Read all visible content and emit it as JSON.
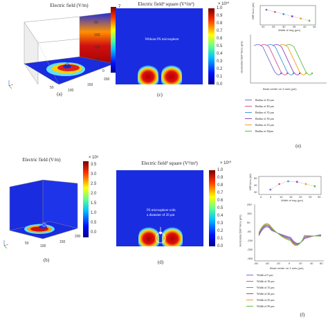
{
  "panels": {
    "a": {
      "title": "Electric field (V/m)",
      "caption": "(a)",
      "colorbar_ticks": [
        "7",
        "6",
        "5",
        "4",
        "3",
        "2",
        "1",
        "0"
      ],
      "axis_ticks": [
        "50",
        "100",
        "150",
        "200",
        "0",
        "50",
        "100",
        "150",
        "200",
        "100",
        "50",
        "0",
        "200"
      ]
    },
    "b": {
      "title": "Electric field (V/m)",
      "caption": "(b)",
      "multiplier": "× 10⁵",
      "colorbar_ticks": [
        "3.5",
        "3.0",
        "2.5",
        "2.0",
        "1.5",
        "1.0",
        "0.5",
        "0.0"
      ],
      "axis_ticks": [
        "50",
        "100",
        "150",
        "200",
        "0",
        "50",
        "100",
        "150",
        "200",
        "100",
        "50",
        "0",
        "200"
      ]
    },
    "c": {
      "title": "Electric field² square (V²/m²)",
      "caption": "(c)",
      "multiplier": "× 10¹⁰",
      "annotation": "Without PS microsphere",
      "colorbar_ticks": [
        "1.0",
        "0.9",
        "0.8",
        "0.7",
        "0.6",
        "0.5",
        "0.4",
        "0.3",
        "0.2",
        "0.1",
        "0.0"
      ]
    },
    "d": {
      "title": "Electric field² square (V²/m²)",
      "caption": "(d)",
      "multiplier": "× 10¹⁰",
      "annotation_line1": "PS microsphere with",
      "annotation_line2": "a diameter of 20 μm",
      "colorbar_ticks": [
        "1.0",
        "0.9",
        "0.8",
        "0.7",
        "0.6",
        "0.5",
        "0.4",
        "0.3",
        "0.2",
        "0.1",
        "0.0"
      ]
    },
    "e": {
      "caption": "(e)",
      "ylabel": "Horizontal DEP force (pN)",
      "xlabel": "Bead center on X axis (μm)",
      "inset_ylabel": "DEP force (pN)",
      "inset_xlabel": "Width of ring (μm)",
      "inset_xticks": [
        "20",
        "25",
        "30",
        "35",
        "40",
        "45"
      ],
      "legend": [
        {
          "label": "Radius of 45 μm",
          "color": "#7b68d8"
        },
        {
          "label": "Radius of 40 μm",
          "color": "#e0508a"
        },
        {
          "label": "Radius of 35 μm",
          "color": "#3aa0d8"
        },
        {
          "label": "Radius of 30 μm",
          "color": "#9a40c0"
        },
        {
          "label": "Radius of 25 μm",
          "color": "#f0a020"
        },
        {
          "label": "Radius of 20μm",
          "color": "#60c040"
        }
      ]
    },
    "f": {
      "caption": "(f)",
      "ylabel": "Horizontal DEP force (pN)",
      "xlabel": "Bead center on X axis (μm)",
      "inset_ylabel": "DEP force (pN)",
      "inset_xlabel": "Width of ring (μm)",
      "inset_xticks": [
        "0",
        "5",
        "10",
        "15",
        "20",
        "25",
        "30"
      ],
      "inset_yticks": [
        "50",
        "40",
        "30"
      ],
      "yticks": [
        "250",
        "200",
        "150",
        "100",
        "50",
        "0",
        "-50",
        "-100",
        "-150",
        "-200",
        "-250",
        "-300",
        "-350"
      ],
      "xticks": [
        "-60",
        "-40",
        "-20",
        "0",
        "20",
        "40",
        "60"
      ],
      "legend": [
        {
          "label": "Width of 5 μm",
          "color": "#7b68d8"
        },
        {
          "label": "Width of 10 μm",
          "color": "#e0508a"
        },
        {
          "label": "Width of 15 μm",
          "color": "#3aa0d8"
        },
        {
          "label": "Width of 20 μm",
          "color": "#9a40c0"
        },
        {
          "label": "Width of 25 μm",
          "color": "#f0a020"
        },
        {
          "label": "Width of 30 μm",
          "color": "#60c040"
        }
      ]
    }
  },
  "chart_data": [
    {
      "type": "line",
      "panel": "e-inset",
      "x": [
        20,
        25,
        30,
        35,
        40,
        45
      ],
      "values": [
        54,
        50,
        46,
        42,
        38,
        34
      ],
      "xlabel": "Width of ring (μm)",
      "ylabel": "DEP force (pN)"
    },
    {
      "type": "line",
      "panel": "f-inset",
      "x": [
        5,
        10,
        15,
        20,
        25,
        30
      ],
      "values": [
        30,
        40,
        45,
        44,
        40,
        36
      ],
      "xlabel": "Width of ring (μm)",
      "ylabel": "DEP force (pN)"
    }
  ],
  "colors": {
    "field_bg": "#1a2ce0",
    "hot": "#c8102e",
    "colorbar_top": "#7a0000",
    "colorbar_bottom": "#00008a"
  }
}
